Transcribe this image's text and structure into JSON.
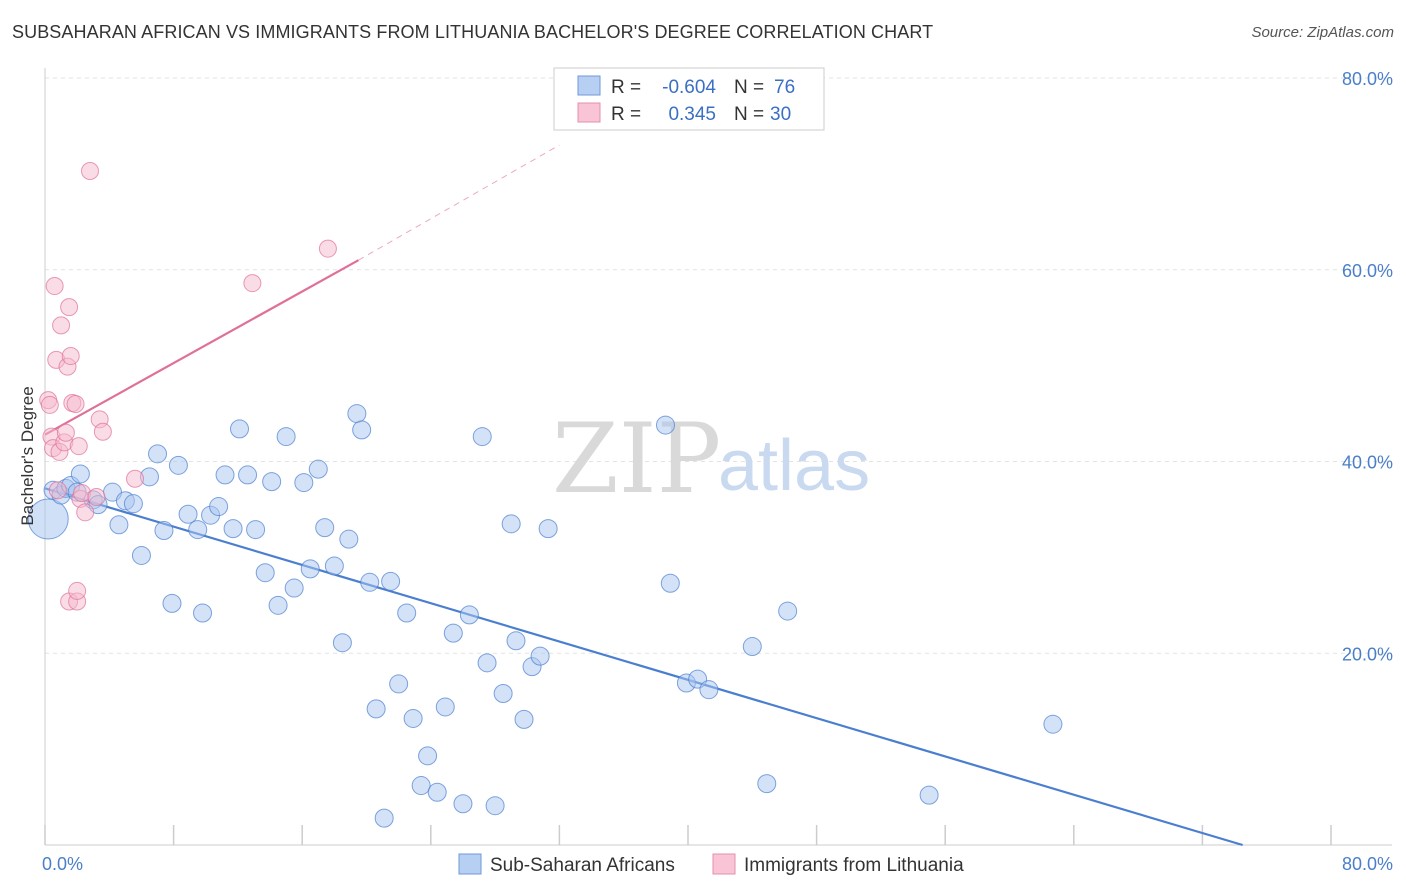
{
  "header": {
    "title": "SUBSAHARAN AFRICAN VS IMMIGRANTS FROM LITHUANIA BACHELOR'S DEGREE CORRELATION CHART",
    "source": "Source: ZipAtlas.com"
  },
  "watermark": {
    "zip": "ZIP",
    "atlas": "atlas"
  },
  "colors": {
    "blue": "#4a7fd0",
    "blue_fill": "#a9c6ef",
    "pink": "#e0709a",
    "pink_fill": "#f6b9cd",
    "grid": "#e3e3e3",
    "axis_label": "#4a7fc8"
  },
  "stats_legend": {
    "rows": [
      {
        "r_label": "R =",
        "r_value": "-0.604",
        "n_label": "N =",
        "n_value": "76",
        "series": "blue"
      },
      {
        "r_label": "R =",
        "r_value": "0.345",
        "n_label": "N =",
        "n_value": "30",
        "series": "pink"
      }
    ]
  },
  "chart_data": {
    "type": "scatter",
    "title": "SUBSAHARAN AFRICAN VS IMMIGRANTS FROM LITHUANIA BACHELOR'S DEGREE CORRELATION CHART",
    "xlabel": "",
    "ylabel": "Bachelor's Degree",
    "xlim": [
      0,
      80
    ],
    "ylim": [
      0,
      80
    ],
    "x_tick_labels": [
      "0.0%",
      "80.0%"
    ],
    "y_ticks": [
      20,
      40,
      60,
      80
    ],
    "y_tick_labels": [
      "20.0%",
      "40.0%",
      "60.0%",
      "80.0%"
    ],
    "grid": true,
    "legend_position": "bottom",
    "series": [
      {
        "name": "Sub-Saharan Africans",
        "color": "#4a7fd0",
        "r": -0.604,
        "n": 76,
        "trend": {
          "x": [
            0,
            74.5
          ],
          "y": [
            37.2,
            0
          ]
        },
        "points": [
          [
            0.2,
            34.0
          ],
          [
            0.5,
            37.0
          ],
          [
            1.0,
            36.5
          ],
          [
            1.3,
            37.2
          ],
          [
            1.6,
            37.5
          ],
          [
            2.0,
            36.8
          ],
          [
            2.2,
            38.7
          ],
          [
            3.0,
            36.0
          ],
          [
            3.3,
            35.5
          ],
          [
            4.2,
            36.8
          ],
          [
            4.6,
            33.4
          ],
          [
            5.0,
            35.9
          ],
          [
            5.5,
            35.6
          ],
          [
            6.0,
            30.2
          ],
          [
            6.5,
            38.4
          ],
          [
            7.0,
            40.8
          ],
          [
            7.4,
            32.8
          ],
          [
            7.9,
            25.2
          ],
          [
            8.3,
            39.6
          ],
          [
            8.9,
            34.5
          ],
          [
            9.5,
            32.9
          ],
          [
            9.8,
            24.2
          ],
          [
            10.3,
            34.4
          ],
          [
            10.8,
            35.3
          ],
          [
            11.2,
            38.6
          ],
          [
            11.7,
            33.0
          ],
          [
            12.1,
            43.4
          ],
          [
            12.6,
            38.6
          ],
          [
            13.1,
            32.9
          ],
          [
            13.7,
            28.4
          ],
          [
            14.1,
            37.9
          ],
          [
            14.5,
            25.0
          ],
          [
            15.0,
            42.6
          ],
          [
            15.5,
            26.8
          ],
          [
            16.1,
            37.8
          ],
          [
            16.5,
            28.8
          ],
          [
            17.0,
            39.2
          ],
          [
            17.4,
            33.1
          ],
          [
            18.0,
            29.1
          ],
          [
            18.5,
            21.1
          ],
          [
            18.9,
            31.9
          ],
          [
            19.4,
            45.0
          ],
          [
            19.7,
            43.3
          ],
          [
            20.2,
            27.4
          ],
          [
            20.6,
            14.2
          ],
          [
            21.1,
            2.8
          ],
          [
            21.5,
            27.5
          ],
          [
            22.0,
            16.8
          ],
          [
            22.5,
            24.2
          ],
          [
            22.9,
            13.2
          ],
          [
            23.4,
            6.2
          ],
          [
            23.8,
            9.3
          ],
          [
            24.4,
            5.5
          ],
          [
            24.9,
            14.4
          ],
          [
            25.4,
            22.1
          ],
          [
            26.0,
            4.3
          ],
          [
            26.4,
            24.0
          ],
          [
            27.2,
            42.6
          ],
          [
            27.5,
            19.0
          ],
          [
            28.0,
            4.1
          ],
          [
            28.5,
            15.8
          ],
          [
            29.0,
            33.5
          ],
          [
            29.3,
            21.3
          ],
          [
            29.8,
            13.1
          ],
          [
            30.3,
            18.6
          ],
          [
            30.8,
            19.7
          ],
          [
            31.3,
            33.0
          ],
          [
            38.6,
            43.8
          ],
          [
            38.9,
            27.3
          ],
          [
            39.9,
            16.9
          ],
          [
            40.6,
            17.3
          ],
          [
            41.3,
            16.2
          ],
          [
            44.0,
            20.7
          ],
          [
            44.9,
            6.4
          ],
          [
            46.2,
            24.4
          ],
          [
            55.0,
            5.2
          ],
          [
            62.7,
            12.6
          ]
        ],
        "large_point": [
          0.2,
          34.0
        ]
      },
      {
        "name": "Immigrants from Lithuania",
        "color": "#e0709a",
        "r": 0.345,
        "n": 30,
        "trend": {
          "x": [
            0,
            19.5
          ],
          "y": [
            42.8,
            61.0
          ]
        },
        "trend_dashed": {
          "x": [
            19.5,
            32.0
          ],
          "y": [
            61.0,
            73.0
          ]
        },
        "points": [
          [
            0.2,
            46.4
          ],
          [
            0.3,
            45.9
          ],
          [
            0.4,
            42.6
          ],
          [
            0.5,
            41.4
          ],
          [
            0.6,
            58.3
          ],
          [
            0.7,
            50.6
          ],
          [
            0.9,
            41.0
          ],
          [
            1.0,
            54.2
          ],
          [
            1.2,
            42.0
          ],
          [
            1.3,
            43.0
          ],
          [
            1.4,
            49.9
          ],
          [
            1.5,
            25.4
          ],
          [
            1.5,
            56.1
          ],
          [
            1.6,
            51.0
          ],
          [
            1.7,
            46.1
          ],
          [
            1.9,
            46.0
          ],
          [
            2.0,
            25.4
          ],
          [
            2.0,
            26.5
          ],
          [
            2.1,
            41.6
          ],
          [
            2.2,
            36.1
          ],
          [
            2.3,
            36.7
          ],
          [
            2.5,
            34.7
          ],
          [
            2.8,
            70.3
          ],
          [
            3.2,
            36.3
          ],
          [
            3.4,
            44.4
          ],
          [
            3.6,
            43.1
          ],
          [
            5.6,
            38.2
          ],
          [
            12.9,
            58.6
          ],
          [
            17.6,
            62.2
          ],
          [
            0.8,
            37.0
          ]
        ]
      }
    ]
  },
  "bottom_legend": [
    {
      "label": "Sub-Saharan Africans",
      "series": "blue"
    },
    {
      "label": "Immigrants from Lithuania",
      "series": "pink"
    }
  ]
}
